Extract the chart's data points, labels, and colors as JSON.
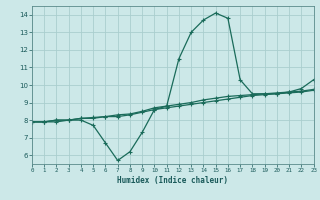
{
  "xlabel": "Humidex (Indice chaleur)",
  "bg_color": "#cce8e8",
  "grid_color": "#aacece",
  "line_color": "#1a6b5a",
  "line1_x": [
    0,
    1,
    2,
    3,
    4,
    5,
    6,
    7,
    8,
    9,
    10,
    11,
    12,
    13,
    14,
    15,
    16,
    17,
    18,
    19,
    20,
    21,
    22,
    23
  ],
  "line1_y": [
    7.9,
    7.9,
    7.9,
    8.0,
    8.0,
    7.7,
    6.7,
    5.7,
    6.2,
    7.3,
    8.6,
    8.8,
    11.5,
    13.0,
    13.7,
    14.1,
    13.8,
    10.3,
    9.5,
    9.5,
    9.5,
    9.6,
    9.8,
    10.3
  ],
  "line2_x": [
    0,
    1,
    2,
    3,
    4,
    5,
    6,
    7,
    8,
    9,
    10,
    11,
    12,
    13,
    14,
    15,
    16,
    17,
    18,
    19,
    20,
    21,
    22,
    23
  ],
  "line2_y": [
    7.9,
    7.9,
    8.0,
    8.0,
    8.1,
    8.1,
    8.2,
    8.2,
    8.3,
    8.45,
    8.6,
    8.7,
    8.8,
    8.9,
    9.0,
    9.1,
    9.2,
    9.3,
    9.4,
    9.45,
    9.5,
    9.55,
    9.6,
    9.7
  ],
  "line3_x": [
    0,
    1,
    2,
    3,
    4,
    5,
    6,
    7,
    8,
    9,
    10,
    11,
    12,
    13,
    14,
    15,
    16,
    17,
    18,
    19,
    20,
    21,
    22,
    23
  ],
  "line3_y": [
    7.9,
    7.9,
    8.0,
    8.0,
    8.1,
    8.15,
    8.2,
    8.3,
    8.35,
    8.5,
    8.7,
    8.8,
    8.9,
    9.0,
    9.15,
    9.25,
    9.35,
    9.4,
    9.45,
    9.5,
    9.55,
    9.6,
    9.65,
    9.75
  ],
  "xlim": [
    0,
    23
  ],
  "ylim": [
    5.5,
    14.5
  ],
  "yticks": [
    6,
    7,
    8,
    9,
    10,
    11,
    12,
    13,
    14
  ],
  "xticks": [
    0,
    1,
    2,
    3,
    4,
    5,
    6,
    7,
    8,
    9,
    10,
    11,
    12,
    13,
    14,
    15,
    16,
    17,
    18,
    19,
    20,
    21,
    22,
    23
  ]
}
